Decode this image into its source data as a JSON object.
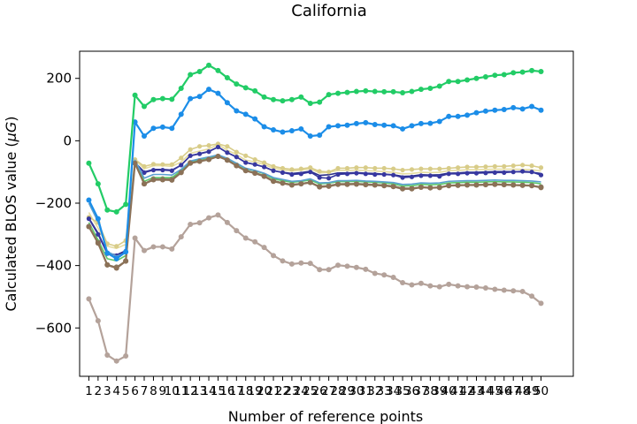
{
  "chart_data": {
    "type": "line",
    "title": "California",
    "xlabel": "Number of reference points",
    "ylabel": "Calculated BLOS value (μG)",
    "ylabel_prefix": "Calculated BLOS value (",
    "ylabel_mu": "μ",
    "ylabel_g": "G",
    "ylabel_suffix": ")",
    "x": [
      1,
      2,
      3,
      4,
      5,
      6,
      7,
      8,
      9,
      10,
      11,
      12,
      13,
      14,
      15,
      16,
      17,
      18,
      19,
      20,
      21,
      22,
      23,
      24,
      25,
      26,
      27,
      28,
      29,
      30,
      31,
      32,
      33,
      34,
      35,
      36,
      37,
      38,
      39,
      40,
      41,
      42,
      43,
      44,
      45,
      46,
      47,
      48,
      49,
      50
    ],
    "xtick_labels": [
      "1",
      "2",
      "3",
      "4",
      "5",
      "6",
      "7",
      "8",
      "9",
      "10",
      "11",
      "12",
      "13",
      "14",
      "15",
      "16",
      "17",
      "18",
      "19",
      "20",
      "21",
      "22",
      "23",
      "24",
      "25",
      "26",
      "27",
      "28",
      "29",
      "30",
      "31",
      "32",
      "33",
      "34",
      "35",
      "36",
      "37",
      "38",
      "39",
      "40",
      "41",
      "42",
      "43",
      "44",
      "45",
      "46",
      "47",
      "48",
      "49",
      "50"
    ],
    "xlim": [
      0.0,
      53.5
    ],
    "ylim": [
      -755,
      287
    ],
    "yticks": [
      200,
      0,
      -200,
      -400,
      -600
    ],
    "ytick_labels": [
      "200",
      "0",
      "−200",
      "−400",
      "−600"
    ],
    "grid": false,
    "series": [
      {
        "color": "#b4a29a",
        "values": [
          -507,
          -577,
          -687,
          -706,
          -690,
          -312,
          -352,
          -340,
          -340,
          -347,
          -308,
          -268,
          -263,
          -247,
          -238,
          -262,
          -288,
          -312,
          -324,
          -342,
          -368,
          -385,
          -395,
          -392,
          -393,
          -413,
          -413,
          -399,
          -402,
          -406,
          -412,
          -425,
          -430,
          -438,
          -455,
          -462,
          -457,
          -465,
          -468,
          -460,
          -465,
          -468,
          -469,
          -472,
          -476,
          -479,
          -481,
          -483,
          -498,
          -521
        ]
      },
      {
        "color": "#8a7a60",
        "values": [
          -275,
          -325,
          -398,
          -405,
          -385,
          -70,
          -138,
          -122,
          -122,
          -122,
          -100,
          -70,
          -64,
          -60,
          -50,
          -62,
          -78,
          -95,
          -102,
          -112,
          -128,
          -135,
          -140,
          -137,
          -133,
          -146,
          -144,
          -138,
          -138,
          -137,
          -139,
          -140,
          -142,
          -145,
          -152,
          -152,
          -148,
          -150,
          -149,
          -143,
          -142,
          -141,
          -141,
          -140,
          -139,
          -140,
          -141,
          -142,
          -143,
          -148
        ]
      },
      {
        "color": "#5ec86a",
        "values": [
          -262,
          -318,
          -378,
          -385,
          -368,
          -66,
          -130,
          -118,
          -118,
          -118,
          -96,
          -66,
          -60,
          -55,
          -48,
          -58,
          -72,
          -90,
          -96,
          -106,
          -122,
          -128,
          -133,
          -130,
          -126,
          -138,
          -136,
          -131,
          -131,
          -130,
          -132,
          -133,
          -135,
          -138,
          -145,
          -144,
          -140,
          -141,
          -140,
          -135,
          -134,
          -133,
          -133,
          -132,
          -131,
          -132,
          -132,
          -133,
          -134,
          -138
        ]
      },
      {
        "color": "#e5dca0",
        "values": [
          -230,
          -280,
          -338,
          -345,
          -332,
          -60,
          -90,
          -80,
          -80,
          -82,
          -68,
          -40,
          -33,
          -26,
          -12,
          -30,
          -44,
          -62,
          -68,
          -76,
          -88,
          -93,
          -97,
          -94,
          -90,
          -103,
          -101,
          -95,
          -95,
          -94,
          -96,
          -97,
          -99,
          -101,
          -106,
          -105,
          -101,
          -102,
          -101,
          -96,
          -95,
          -93,
          -93,
          -92,
          -91,
          -91,
          -91,
          -92,
          -93,
          -97
        ]
      },
      {
        "color": "#2a2e88",
        "values": [
          -248,
          -296,
          -360,
          -366,
          -352,
          -70,
          -100,
          -92,
          -92,
          -94,
          -78,
          -48,
          -41,
          -34,
          -20,
          -38,
          -52,
          -70,
          -76,
          -84,
          -96,
          -101,
          -105,
          -102,
          -98,
          -111,
          -109,
          -103,
          -103,
          -102,
          -104,
          -105,
          -107,
          -109,
          -114,
          -113,
          -109,
          -110,
          -109,
          -104,
          -103,
          -101,
          -101,
          -100,
          -99,
          -99,
          -99,
          -100,
          -101,
          -105
        ]
      },
      {
        "color": "#d8cc88",
        "values": [
          -245,
          -262,
          -330,
          -338,
          -320,
          -60,
          -82,
          -75,
          -76,
          -76,
          -55,
          -28,
          -18,
          -15,
          -10,
          -18,
          -36,
          -48,
          -60,
          -70,
          -82,
          -88,
          -92,
          -90,
          -86,
          -98,
          -100,
          -88,
          -88,
          -86,
          -86,
          -88,
          -88,
          -90,
          -94,
          -92,
          -90,
          -90,
          -90,
          -88,
          -86,
          -84,
          -84,
          -83,
          -82,
          -82,
          -80,
          -78,
          -80,
          -86
        ]
      },
      {
        "color": "#3838a0",
        "values": [
          -250,
          -300,
          -362,
          -368,
          -354,
          -72,
          -102,
          -94,
          -94,
          -96,
          -78,
          -48,
          -42,
          -35,
          -20,
          -38,
          -52,
          -70,
          -76,
          -84,
          -96,
          -102,
          -108,
          -106,
          -100,
          -118,
          -120,
          -108,
          -106,
          -104,
          -106,
          -108,
          -108,
          -110,
          -118,
          -116,
          -112,
          -112,
          -114,
          -106,
          -106,
          -104,
          -104,
          -103,
          -102,
          -102,
          -100,
          -98,
          -100,
          -110
        ]
      },
      {
        "color": "#5aa0d0",
        "values": [
          -200,
          -260,
          -355,
          -370,
          -360,
          -62,
          -120,
          -108,
          -108,
          -110,
          -92,
          -65,
          -58,
          -52,
          -45,
          -56,
          -72,
          -88,
          -95,
          -104,
          -118,
          -124,
          -130,
          -128,
          -122,
          -135,
          -134,
          -128,
          -128,
          -127,
          -129,
          -130,
          -132,
          -134,
          -140,
          -139,
          -135,
          -136,
          -135,
          -130,
          -129,
          -128,
          -128,
          -127,
          -126,
          -127,
          -127,
          -128,
          -129,
          -132
        ]
      },
      {
        "color": "#8b7157",
        "values": [
          -275,
          -328,
          -398,
          -408,
          -386,
          -72,
          -138,
          -125,
          -125,
          -126,
          -102,
          -72,
          -66,
          -60,
          -50,
          -62,
          -80,
          -96,
          -104,
          -114,
          -130,
          -136,
          -142,
          -138,
          -134,
          -148,
          -146,
          -140,
          -140,
          -139,
          -141,
          -142,
          -144,
          -147,
          -154,
          -154,
          -149,
          -151,
          -150,
          -144,
          -143,
          -142,
          -142,
          -141,
          -140,
          -141,
          -142,
          -143,
          -144,
          -150
        ]
      },
      {
        "color": "#1b8de8",
        "values": [
          -190,
          -250,
          -360,
          -378,
          -356,
          60,
          15,
          40,
          44,
          40,
          85,
          135,
          142,
          165,
          152,
          122,
          96,
          85,
          70,
          45,
          35,
          28,
          32,
          38,
          15,
          18,
          45,
          48,
          50,
          55,
          58,
          52,
          50,
          48,
          38,
          48,
          55,
          56,
          62,
          78,
          78,
          82,
          90,
          95,
          98,
          100,
          106,
          102,
          110,
          98
        ]
      },
      {
        "color": "#22cc66",
        "values": [
          -72,
          -138,
          -222,
          -228,
          -204,
          146,
          110,
          132,
          135,
          133,
          168,
          212,
          222,
          242,
          225,
          202,
          182,
          170,
          160,
          140,
          132,
          128,
          132,
          140,
          120,
          124,
          148,
          152,
          155,
          158,
          160,
          158,
          157,
          157,
          154,
          158,
          165,
          168,
          175,
          190,
          190,
          195,
          200,
          205,
          210,
          212,
          218,
          220,
          225,
          222
        ]
      }
    ],
    "markers_on_series": [
      0,
      1,
      8,
      9,
      10
    ],
    "extra_markers": [
      {
        "series": 5,
        "every": 1
      },
      {
        "series": 6,
        "every": 1
      }
    ]
  }
}
